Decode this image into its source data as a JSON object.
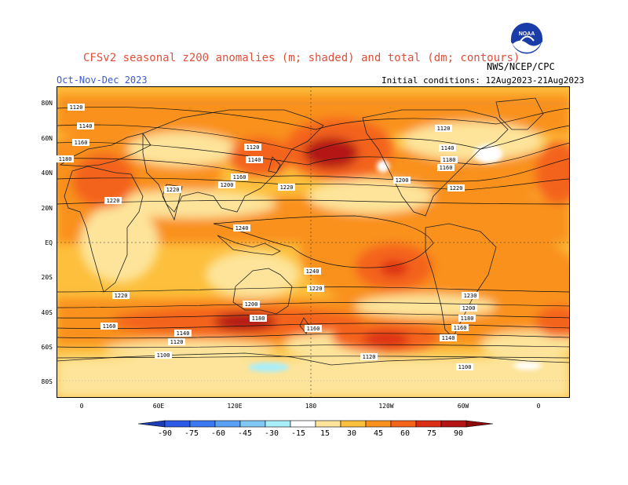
{
  "header": {
    "title": "CFSv2 seasonal z200 anomalies (m; shaded) and total (dm; contours)",
    "credit": "NWS/NCEP/CPC",
    "season": "Oct-Nov-Dec 2023",
    "initial_conditions": "Initial conditions: 12Aug2023-21Aug2023",
    "logo_text": "NOAA"
  },
  "map": {
    "lat_ticks": [
      "80N",
      "60N",
      "40N",
      "20N",
      "EQ",
      "20S",
      "40S",
      "60S",
      "80S"
    ],
    "lon_ticks": [
      "0",
      "60E",
      "120E",
      "180",
      "120W",
      "60W",
      "0"
    ],
    "contour_labels": [
      "1120",
      "1140",
      "1160",
      "1180",
      "1120",
      "1140",
      "1160",
      "1200",
      "1220",
      "1220",
      "1120",
      "1140",
      "1160",
      "1180",
      "1200",
      "1220",
      "1240",
      "1240",
      "1220",
      "1220",
      "1200",
      "1220",
      "1230",
      "1200",
      "1180",
      "1160",
      "1140",
      "1160",
      "1180",
      "1140",
      "1120",
      "1160",
      "1120",
      "1100",
      "1100"
    ]
  },
  "legend": {
    "values": [
      "-90",
      "-75",
      "-60",
      "-45",
      "-30",
      "-15",
      "15",
      "30",
      "45",
      "60",
      "75",
      "90"
    ],
    "colors": [
      "#1e3cb4",
      "#2a5ae6",
      "#3c78f0",
      "#5aa0f5",
      "#82c8f5",
      "#aaeefa",
      "#ffffff",
      "#fde49a",
      "#fdbf3c",
      "#f9911e",
      "#f4641a",
      "#dc2e16",
      "#b41414",
      "#8c0a0a"
    ]
  }
}
